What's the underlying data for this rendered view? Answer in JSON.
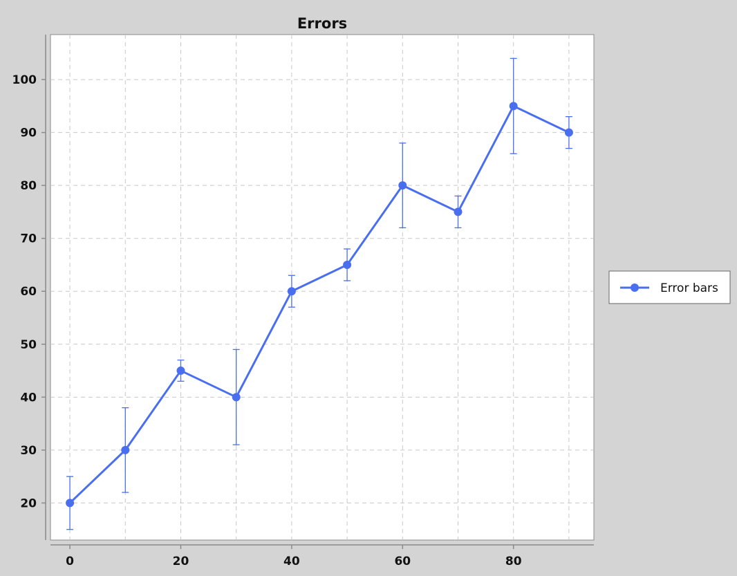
{
  "chart_data": {
    "type": "line",
    "title": "Errors",
    "xlabel": "",
    "ylabel": "",
    "x_ticks": [
      0,
      20,
      40,
      60,
      80
    ],
    "y_ticks": [
      20,
      30,
      40,
      50,
      60,
      70,
      80,
      90,
      100
    ],
    "xlim": [
      -3.5,
      94.5
    ],
    "ylim": [
      13,
      108.5
    ],
    "grid": true,
    "legend_position": "right",
    "series": [
      {
        "name": "Error bars",
        "color": "#4a6ef0",
        "x": [
          0,
          10,
          20,
          30,
          40,
          50,
          60,
          70,
          80,
          90
        ],
        "y": [
          20,
          30,
          45,
          40,
          60,
          65,
          80,
          75,
          95,
          90
        ],
        "y_lower": [
          15,
          22,
          43,
          31,
          57,
          62,
          72,
          72,
          86,
          87
        ],
        "y_upper": [
          25,
          38,
          47,
          49,
          63,
          68,
          88,
          78,
          104,
          93
        ]
      }
    ]
  }
}
